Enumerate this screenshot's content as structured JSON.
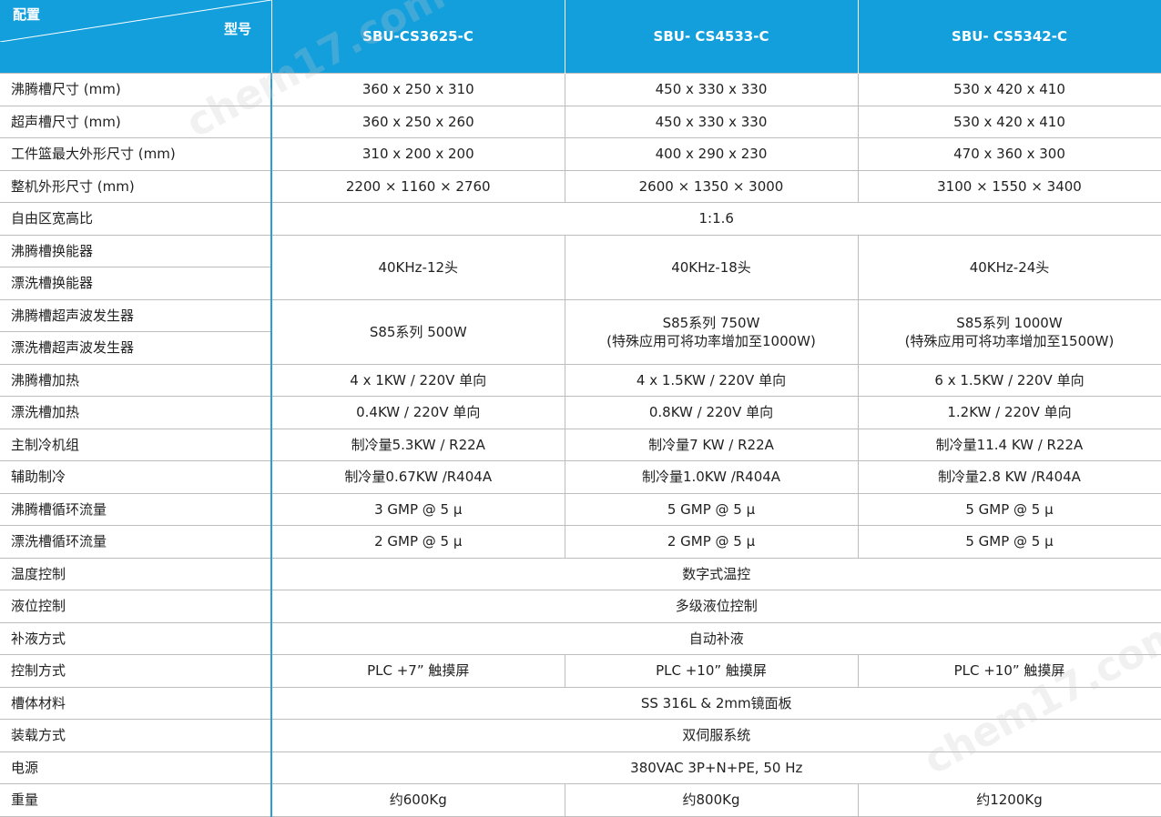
{
  "header": {
    "corner_config": "配置",
    "corner_model": "型号",
    "models": [
      "SBU-CS3625-C",
      "SBU- CS4533-C",
      "SBU- CS5342-C"
    ]
  },
  "rows": [
    {
      "labels": [
        "沸腾槽尺寸 (mm)"
      ],
      "values": [
        "360 x 250 x 310",
        "450 x 330 x 330",
        "530 x 420 x 410"
      ]
    },
    {
      "labels": [
        "超声槽尺寸 (mm)"
      ],
      "values": [
        "360 x 250 x 260",
        "450 x 330 x 330",
        "530 x 420 x 410"
      ]
    },
    {
      "labels": [
        "工件篮最大外形尺寸 (mm)"
      ],
      "values": [
        "310 x 200 x 200",
        "400 x 290 x 230",
        "470 x 360 x 300"
      ]
    },
    {
      "labels": [
        "整机外形尺寸 (mm)"
      ],
      "values": [
        "2200 × 1160 × 2760",
        "2600 × 1350 × 3000",
        "3100 × 1550 × 3400"
      ]
    },
    {
      "labels": [
        "自由区宽高比"
      ],
      "values": [
        "1:1.6"
      ]
    },
    {
      "labels": [
        "沸腾槽换能器",
        "漂洗槽换能器"
      ],
      "values": [
        "40KHz-12头",
        "40KHz-18头",
        "40KHz-24头"
      ]
    },
    {
      "labels": [
        "沸腾槽超声波发生器",
        "漂洗槽超声波发生器"
      ],
      "values": [
        "S85系列 500W",
        "S85系列 750W\n(特殊应用可将功率增加至1000W)",
        "S85系列 1000W\n(特殊应用可将功率增加至1500W)"
      ]
    },
    {
      "labels": [
        "沸腾槽加热"
      ],
      "values": [
        "4 x 1KW / 220V 单向",
        "4 x 1.5KW / 220V 单向",
        "6 x 1.5KW / 220V 单向"
      ]
    },
    {
      "labels": [
        "漂洗槽加热"
      ],
      "values": [
        "0.4KW / 220V 单向",
        "0.8KW / 220V 单向",
        "1.2KW / 220V 单向"
      ]
    },
    {
      "labels": [
        "主制冷机组"
      ],
      "values": [
        "制冷量5.3KW / R22A",
        "制冷量7 KW / R22A",
        "制冷量11.4 KW / R22A"
      ]
    },
    {
      "labels": [
        "辅助制冷"
      ],
      "values": [
        "制冷量0.67KW /R404A",
        "制冷量1.0KW /R404A",
        "制冷量2.8 KW /R404A"
      ]
    },
    {
      "labels": [
        "沸腾槽循环流量"
      ],
      "values": [
        "3 GMP @ 5 μ",
        "5 GMP @ 5 μ",
        "5 GMP @ 5 μ"
      ]
    },
    {
      "labels": [
        "漂洗槽循环流量"
      ],
      "values": [
        "2 GMP @ 5 μ",
        "2 GMP @ 5 μ",
        "5 GMP @ 5 μ"
      ]
    },
    {
      "labels": [
        "温度控制"
      ],
      "values": [
        "数字式温控"
      ]
    },
    {
      "labels": [
        "液位控制"
      ],
      "values": [
        "多级液位控制"
      ]
    },
    {
      "labels": [
        "补液方式"
      ],
      "values": [
        "自动补液"
      ]
    },
    {
      "labels": [
        "控制方式"
      ],
      "values": [
        "PLC +7” 触摸屏",
        "PLC +10” 触摸屏",
        "PLC +10” 触摸屏"
      ]
    },
    {
      "labels": [
        "槽体材料"
      ],
      "values": [
        "SS 316L & 2mm镜面板"
      ]
    },
    {
      "labels": [
        "装载方式"
      ],
      "values": [
        "双伺服系统"
      ]
    },
    {
      "labels": [
        "电源"
      ],
      "values": [
        "380VAC 3P+N+PE, 50 Hz"
      ]
    },
    {
      "labels": [
        "重量"
      ],
      "values": [
        "约600Kg",
        "约800Kg",
        "约1200Kg"
      ]
    }
  ],
  "watermarks": [
    "chem17.com",
    "chem17.com"
  ]
}
